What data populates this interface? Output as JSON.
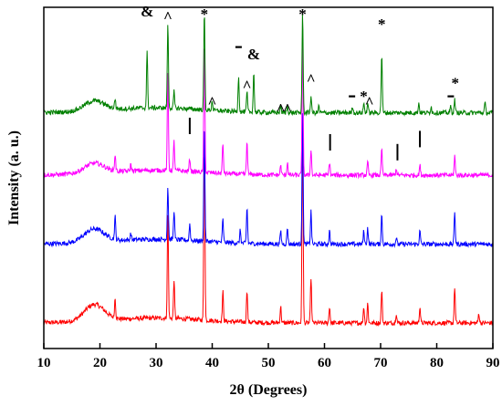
{
  "chart_data": {
    "type": "line",
    "title": "",
    "xlabel": "2θ (Degrees)",
    "ylabel": "Intensity (a. u.)",
    "xlim": [
      10,
      90
    ],
    "xticks": [
      10,
      20,
      30,
      40,
      50,
      60,
      70,
      80,
      90
    ],
    "yticks_shown": false,
    "grid": false,
    "legend": "none",
    "series": [
      {
        "color": "#ff0000",
        "baseline": 0.05,
        "broad_hump": {
          "center": 19,
          "height": 0.05
        },
        "peaks": [
          {
            "x": 22.7,
            "h": 0.06
          },
          {
            "x": 32.1,
            "h": 0.32
          },
          {
            "x": 33.2,
            "h": 0.12
          },
          {
            "x": 38.6,
            "h": 0.6
          },
          {
            "x": 41.9,
            "h": 0.09
          },
          {
            "x": 46.2,
            "h": 0.1
          },
          {
            "x": 52.2,
            "h": 0.05
          },
          {
            "x": 56.1,
            "h": 0.62
          },
          {
            "x": 57.6,
            "h": 0.14
          },
          {
            "x": 60.9,
            "h": 0.05
          },
          {
            "x": 67.0,
            "h": 0.05
          },
          {
            "x": 67.7,
            "h": 0.06
          },
          {
            "x": 70.2,
            "h": 0.1
          },
          {
            "x": 72.8,
            "h": 0.03
          },
          {
            "x": 77.0,
            "h": 0.05
          },
          {
            "x": 83.2,
            "h": 0.11
          },
          {
            "x": 87.5,
            "h": 0.03
          }
        ]
      },
      {
        "color": "#0000ff",
        "baseline": 0.29,
        "broad_hump": {
          "center": 19,
          "height": 0.04
        },
        "peaks": [
          {
            "x": 22.7,
            "h": 0.07
          },
          {
            "x": 25.5,
            "h": 0.02
          },
          {
            "x": 32.1,
            "h": 0.16
          },
          {
            "x": 33.2,
            "h": 0.09
          },
          {
            "x": 36.0,
            "h": 0.05
          },
          {
            "x": 38.6,
            "h": 0.36
          },
          {
            "x": 41.9,
            "h": 0.07
          },
          {
            "x": 45.0,
            "h": 0.04
          },
          {
            "x": 46.2,
            "h": 0.11
          },
          {
            "x": 52.2,
            "h": 0.04
          },
          {
            "x": 53.4,
            "h": 0.05
          },
          {
            "x": 56.1,
            "h": 0.4
          },
          {
            "x": 57.6,
            "h": 0.1
          },
          {
            "x": 60.9,
            "h": 0.04
          },
          {
            "x": 67.0,
            "h": 0.04
          },
          {
            "x": 67.7,
            "h": 0.05
          },
          {
            "x": 70.2,
            "h": 0.09
          },
          {
            "x": 72.8,
            "h": 0.02
          },
          {
            "x": 77.0,
            "h": 0.04
          },
          {
            "x": 83.2,
            "h": 0.1
          }
        ]
      },
      {
        "color": "#ff00ff",
        "baseline": 0.5,
        "broad_hump": {
          "center": 19,
          "height": 0.03
        },
        "peaks": [
          {
            "x": 22.7,
            "h": 0.05
          },
          {
            "x": 25.5,
            "h": 0.02
          },
          {
            "x": 32.1,
            "h": 0.3
          },
          {
            "x": 33.2,
            "h": 0.09
          },
          {
            "x": 36.0,
            "h": 0.04
          },
          {
            "x": 38.6,
            "h": 0.4
          },
          {
            "x": 41.9,
            "h": 0.09
          },
          {
            "x": 46.2,
            "h": 0.1
          },
          {
            "x": 52.2,
            "h": 0.03
          },
          {
            "x": 53.4,
            "h": 0.04
          },
          {
            "x": 56.1,
            "h": 0.42
          },
          {
            "x": 57.6,
            "h": 0.08
          },
          {
            "x": 60.9,
            "h": 0.04
          },
          {
            "x": 67.7,
            "h": 0.04
          },
          {
            "x": 70.2,
            "h": 0.08
          },
          {
            "x": 72.8,
            "h": 0.02
          },
          {
            "x": 77.0,
            "h": 0.03
          },
          {
            "x": 83.2,
            "h": 0.06
          }
        ]
      },
      {
        "color": "#008000",
        "baseline": 0.69,
        "broad_hump": {
          "center": 19,
          "height": 0.03
        },
        "peaks": [
          {
            "x": 22.7,
            "h": 0.03
          },
          {
            "x": 28.4,
            "h": 0.17
          },
          {
            "x": 32.1,
            "h": 0.26
          },
          {
            "x": 33.2,
            "h": 0.05
          },
          {
            "x": 38.6,
            "h": 0.3
          },
          {
            "x": 40.0,
            "h": 0.03
          },
          {
            "x": 44.7,
            "h": 0.11
          },
          {
            "x": 46.2,
            "h": 0.06
          },
          {
            "x": 47.4,
            "h": 0.12
          },
          {
            "x": 52.2,
            "h": 0.02
          },
          {
            "x": 53.4,
            "h": 0.02
          },
          {
            "x": 56.1,
            "h": 0.3
          },
          {
            "x": 57.6,
            "h": 0.05
          },
          {
            "x": 59.0,
            "h": 0.02
          },
          {
            "x": 65.0,
            "h": 0.02
          },
          {
            "x": 67.0,
            "h": 0.03
          },
          {
            "x": 67.7,
            "h": 0.03
          },
          {
            "x": 70.2,
            "h": 0.18
          },
          {
            "x": 76.8,
            "h": 0.03
          },
          {
            "x": 79.0,
            "h": 0.02
          },
          {
            "x": 82.5,
            "h": 0.02
          },
          {
            "x": 83.2,
            "h": 0.04
          },
          {
            "x": 88.6,
            "h": 0.03
          }
        ]
      }
    ],
    "markers": [
      {
        "symbol": "&",
        "x": 28.4,
        "y": 1.0
      },
      {
        "symbol": "^",
        "x": 32.1,
        "y": 1.0
      },
      {
        "symbol": "*",
        "x": 38.6,
        "y": 1.0
      },
      {
        "symbol": "-",
        "x": 44.7,
        "y": 0.89
      },
      {
        "symbol": "&",
        "x": 47.4,
        "y": 0.87
      },
      {
        "symbol": "^",
        "x": 46.2,
        "y": 0.79
      },
      {
        "symbol": "^",
        "x": 40.0,
        "y": 0.74
      },
      {
        "symbol": "*",
        "x": 56.1,
        "y": 1.0
      },
      {
        "symbol": "^",
        "x": 57.6,
        "y": 0.81
      },
      {
        "symbol": "^",
        "x": 52.2,
        "y": 0.72
      },
      {
        "symbol": "^",
        "x": 53.4,
        "y": 0.72
      },
      {
        "symbol": "-",
        "x": 64.9,
        "y": 0.74
      },
      {
        "symbol": "*",
        "x": 67.0,
        "y": 0.75
      },
      {
        "symbol": "^",
        "x": 68.0,
        "y": 0.74
      },
      {
        "symbol": "*",
        "x": 70.2,
        "y": 0.97
      },
      {
        "symbol": "-",
        "x": 82.5,
        "y": 0.74
      },
      {
        "symbol": "*",
        "x": 83.3,
        "y": 0.79
      },
      {
        "symbol": "|",
        "x": 36.0,
        "y": 0.65
      },
      {
        "symbol": "|",
        "x": 61.0,
        "y": 0.6
      },
      {
        "symbol": "|",
        "x": 73.0,
        "y": 0.57
      },
      {
        "symbol": "|",
        "x": 77.0,
        "y": 0.61
      }
    ]
  }
}
